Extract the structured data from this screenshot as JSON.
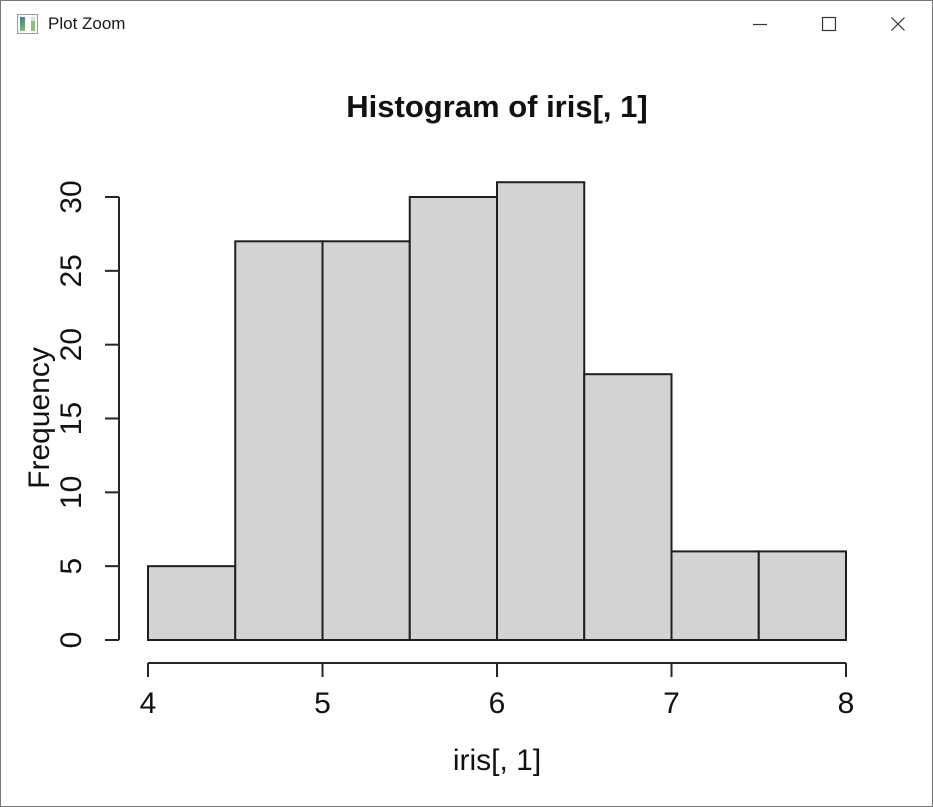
{
  "window": {
    "title": "Plot Zoom",
    "controls": [
      {
        "name": "minimize"
      },
      {
        "name": "maximize"
      },
      {
        "name": "close"
      }
    ]
  },
  "chart_data": {
    "type": "bar",
    "subtype": "histogram",
    "title": "Histogram of iris[, 1]",
    "xlabel": "iris[, 1]",
    "ylabel": "Frequency",
    "breaks": [
      4,
      4.5,
      5,
      5.5,
      6,
      6.5,
      7,
      7.5,
      8
    ],
    "counts": [
      5,
      27,
      27,
      30,
      31,
      18,
      6,
      6
    ],
    "x_ticks": [
      4,
      5,
      6,
      7,
      8
    ],
    "y_ticks": [
      0,
      5,
      10,
      15,
      20,
      25,
      30
    ],
    "xlim": [
      4,
      8
    ],
    "ylim": [
      0,
      31
    ],
    "grid": false,
    "legend": false,
    "bar_fill": "#d3d3d3",
    "bar_stroke": "#1f1f1f",
    "axis_color": "#262626",
    "text_color": "#111111"
  }
}
